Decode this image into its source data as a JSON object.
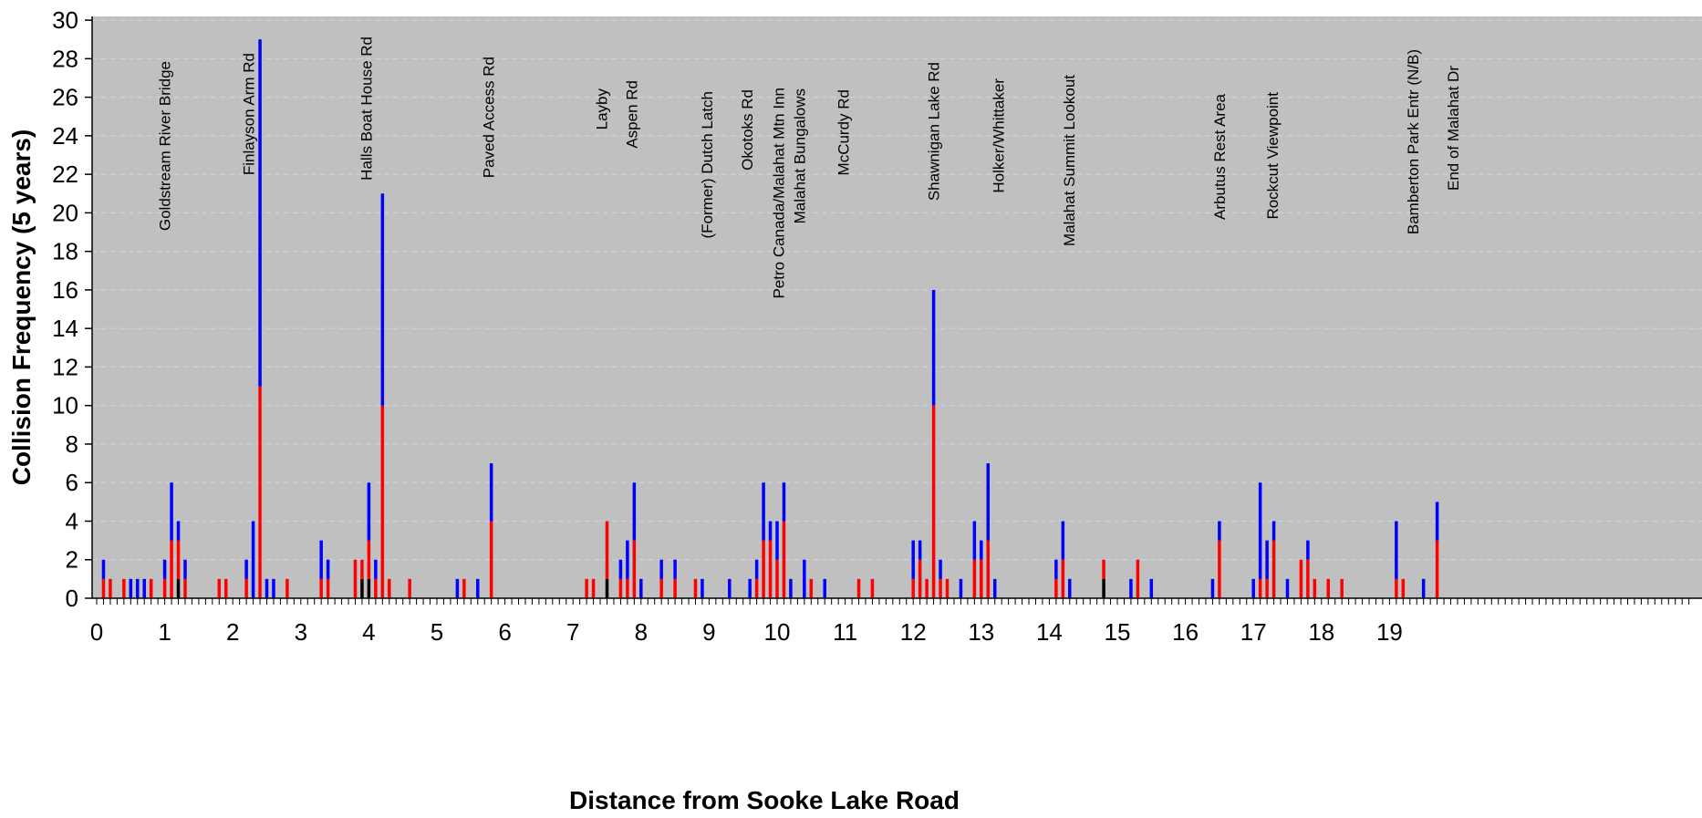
{
  "chart_data": {
    "type": "bar",
    "stacked": true,
    "xlabel": "Distance from Sooke Lake Road",
    "ylabel": "Collision Frequency (5 years)",
    "xlim": [
      0,
      20
    ],
    "ylim": [
      0,
      30
    ],
    "x_ticks": [
      0,
      1,
      2,
      3,
      4,
      5,
      6,
      7,
      8,
      9,
      10,
      11,
      12,
      13,
      14,
      15,
      16,
      17,
      18,
      19
    ],
    "y_ticks": [
      0,
      2,
      4,
      6,
      8,
      10,
      12,
      14,
      16,
      18,
      20,
      22,
      24,
      26,
      28,
      30
    ],
    "grid": "horizontal dashed",
    "colors": {
      "plot_bg": "#c0c0c0",
      "black_series": "#000000",
      "red_series": "#ff0000",
      "blue_series": "#0000ff",
      "grid": "#c5d2ea"
    },
    "landmarks": [
      {
        "km": 1.0,
        "label": "Goldstream River Bridge"
      },
      {
        "km": 2.23,
        "label": "Finlayson Arm Rd"
      },
      {
        "km": 3.96,
        "label": "Halls Boat House Rd"
      },
      {
        "km": 5.76,
        "label": "Paved Access Rd"
      },
      {
        "km": 7.42,
        "label": "Layby"
      },
      {
        "km": 7.86,
        "label": "Aspen Rd"
      },
      {
        "km": 8.97,
        "label": "(Former) Dutch Latch"
      },
      {
        "km": 9.56,
        "label": "Okotoks Rd"
      },
      {
        "km": 10.02,
        "label": "Petro Canada/Malahat Mtn Inn"
      },
      {
        "km": 10.33,
        "label": "Malahat Bungalows"
      },
      {
        "km": 10.97,
        "label": "McCurdy Rd"
      },
      {
        "km": 12.3,
        "label": "Shawnigan Lake Rd"
      },
      {
        "km": 13.25,
        "label": "Holker/Whittaker"
      },
      {
        "km": 14.29,
        "label": "Malahat Summit Lookout"
      },
      {
        "km": 16.5,
        "label": "Arbutus Rest Area"
      },
      {
        "km": 17.28,
        "label": "Rockcut Viewpoint"
      },
      {
        "km": 19.34,
        "label": "Bamberton Park Entr (N/B)"
      },
      {
        "km": 19.93,
        "label": "End of Malahat Dr"
      }
    ],
    "bars": [
      {
        "x": 0.1,
        "black": 0,
        "red": 1,
        "blue": 1
      },
      {
        "x": 0.2,
        "black": 0,
        "red": 1,
        "blue": 0
      },
      {
        "x": 0.4,
        "black": 0,
        "red": 1,
        "blue": 0
      },
      {
        "x": 0.5,
        "black": 0,
        "red": 0,
        "blue": 1
      },
      {
        "x": 0.6,
        "black": 0,
        "red": 0,
        "blue": 1
      },
      {
        "x": 0.7,
        "black": 0,
        "red": 0,
        "blue": 1
      },
      {
        "x": 0.8,
        "black": 0,
        "red": 1,
        "blue": 0
      },
      {
        "x": 1.0,
        "black": 0,
        "red": 1,
        "blue": 1
      },
      {
        "x": 1.1,
        "black": 0,
        "red": 3,
        "blue": 3
      },
      {
        "x": 1.2,
        "black": 1,
        "red": 2,
        "blue": 1
      },
      {
        "x": 1.3,
        "black": 0,
        "red": 1,
        "blue": 1
      },
      {
        "x": 1.8,
        "black": 0,
        "red": 1,
        "blue": 0
      },
      {
        "x": 1.9,
        "black": 0,
        "red": 1,
        "blue": 0
      },
      {
        "x": 2.2,
        "black": 0,
        "red": 1,
        "blue": 1
      },
      {
        "x": 2.3,
        "black": 0,
        "red": 0,
        "blue": 4
      },
      {
        "x": 2.4,
        "black": 0,
        "red": 11,
        "blue": 18
      },
      {
        "x": 2.5,
        "black": 0,
        "red": 0,
        "blue": 1
      },
      {
        "x": 2.6,
        "black": 0,
        "red": 0,
        "blue": 1
      },
      {
        "x": 2.8,
        "black": 0,
        "red": 1,
        "blue": 0
      },
      {
        "x": 3.3,
        "black": 0,
        "red": 1,
        "blue": 2
      },
      {
        "x": 3.4,
        "black": 0,
        "red": 1,
        "blue": 1
      },
      {
        "x": 3.8,
        "black": 0,
        "red": 2,
        "blue": 0
      },
      {
        "x": 3.9,
        "black": 1,
        "red": 1,
        "blue": 0
      },
      {
        "x": 4.0,
        "black": 1,
        "red": 2,
        "blue": 3
      },
      {
        "x": 4.1,
        "black": 0,
        "red": 1,
        "blue": 1
      },
      {
        "x": 4.2,
        "black": 0,
        "red": 10,
        "blue": 11
      },
      {
        "x": 4.3,
        "black": 0,
        "red": 1,
        "blue": 0
      },
      {
        "x": 4.6,
        "black": 0,
        "red": 1,
        "blue": 0
      },
      {
        "x": 5.3,
        "black": 0,
        "red": 0,
        "blue": 1
      },
      {
        "x": 5.4,
        "black": 0,
        "red": 1,
        "blue": 0
      },
      {
        "x": 5.6,
        "black": 0,
        "red": 0,
        "blue": 1
      },
      {
        "x": 5.8,
        "black": 0,
        "red": 4,
        "blue": 3
      },
      {
        "x": 7.2,
        "black": 0,
        "red": 1,
        "blue": 0
      },
      {
        "x": 7.3,
        "black": 0,
        "red": 1,
        "blue": 0
      },
      {
        "x": 7.5,
        "black": 1,
        "red": 3,
        "blue": 0
      },
      {
        "x": 7.7,
        "black": 0,
        "red": 1,
        "blue": 1
      },
      {
        "x": 7.8,
        "black": 0,
        "red": 1,
        "blue": 2
      },
      {
        "x": 7.9,
        "black": 0,
        "red": 3,
        "blue": 3
      },
      {
        "x": 8.0,
        "black": 0,
        "red": 0,
        "blue": 1
      },
      {
        "x": 8.3,
        "black": 0,
        "red": 1,
        "blue": 1
      },
      {
        "x": 8.5,
        "black": 0,
        "red": 1,
        "blue": 1
      },
      {
        "x": 8.8,
        "black": 0,
        "red": 1,
        "blue": 0
      },
      {
        "x": 8.9,
        "black": 0,
        "red": 0,
        "blue": 1
      },
      {
        "x": 9.3,
        "black": 0,
        "red": 0,
        "blue": 1
      },
      {
        "x": 9.6,
        "black": 0,
        "red": 0,
        "blue": 1
      },
      {
        "x": 9.7,
        "black": 0,
        "red": 1,
        "blue": 1
      },
      {
        "x": 9.8,
        "black": 0,
        "red": 3,
        "blue": 3
      },
      {
        "x": 9.9,
        "black": 0,
        "red": 3,
        "blue": 1
      },
      {
        "x": 10.0,
        "black": 0,
        "red": 2,
        "blue": 2
      },
      {
        "x": 10.1,
        "black": 0,
        "red": 4,
        "blue": 2
      },
      {
        "x": 10.2,
        "black": 0,
        "red": 0,
        "blue": 1
      },
      {
        "x": 10.4,
        "black": 0,
        "red": 0,
        "blue": 2
      },
      {
        "x": 10.5,
        "black": 0,
        "red": 1,
        "blue": 0
      },
      {
        "x": 10.7,
        "black": 0,
        "red": 0,
        "blue": 1
      },
      {
        "x": 11.2,
        "black": 0,
        "red": 1,
        "blue": 0
      },
      {
        "x": 11.4,
        "black": 0,
        "red": 1,
        "blue": 0
      },
      {
        "x": 12.0,
        "black": 0,
        "red": 1,
        "blue": 2
      },
      {
        "x": 12.1,
        "black": 0,
        "red": 2,
        "blue": 1
      },
      {
        "x": 12.2,
        "black": 0,
        "red": 1,
        "blue": 0
      },
      {
        "x": 12.3,
        "black": 0,
        "red": 10,
        "blue": 6
      },
      {
        "x": 12.4,
        "black": 0,
        "red": 1,
        "blue": 1
      },
      {
        "x": 12.5,
        "black": 0,
        "red": 1,
        "blue": 0
      },
      {
        "x": 12.7,
        "black": 0,
        "red": 0,
        "blue": 1
      },
      {
        "x": 12.9,
        "black": 0,
        "red": 2,
        "blue": 2
      },
      {
        "x": 13.0,
        "black": 0,
        "red": 2,
        "blue": 1
      },
      {
        "x": 13.1,
        "black": 0,
        "red": 3,
        "blue": 4
      },
      {
        "x": 13.2,
        "black": 0,
        "red": 0,
        "blue": 1
      },
      {
        "x": 14.1,
        "black": 0,
        "red": 1,
        "blue": 1
      },
      {
        "x": 14.2,
        "black": 0,
        "red": 2,
        "blue": 2
      },
      {
        "x": 14.3,
        "black": 0,
        "red": 0,
        "blue": 1
      },
      {
        "x": 14.8,
        "black": 1,
        "red": 1,
        "blue": 0
      },
      {
        "x": 15.2,
        "black": 0,
        "red": 0,
        "blue": 1
      },
      {
        "x": 15.3,
        "black": 0,
        "red": 2,
        "blue": 0
      },
      {
        "x": 15.5,
        "black": 0,
        "red": 0,
        "blue": 1
      },
      {
        "x": 16.4,
        "black": 0,
        "red": 0,
        "blue": 1
      },
      {
        "x": 16.5,
        "black": 0,
        "red": 3,
        "blue": 1
      },
      {
        "x": 17.0,
        "black": 0,
        "red": 0,
        "blue": 1
      },
      {
        "x": 17.1,
        "black": 0,
        "red": 1,
        "blue": 5
      },
      {
        "x": 17.2,
        "black": 0,
        "red": 1,
        "blue": 2
      },
      {
        "x": 17.3,
        "black": 0,
        "red": 3,
        "blue": 1
      },
      {
        "x": 17.5,
        "black": 0,
        "red": 0,
        "blue": 1
      },
      {
        "x": 17.7,
        "black": 0,
        "red": 2,
        "blue": 0
      },
      {
        "x": 17.8,
        "black": 0,
        "red": 2,
        "blue": 1
      },
      {
        "x": 17.9,
        "black": 0,
        "red": 1,
        "blue": 0
      },
      {
        "x": 18.1,
        "black": 0,
        "red": 1,
        "blue": 0
      },
      {
        "x": 18.3,
        "black": 0,
        "red": 1,
        "blue": 0
      },
      {
        "x": 19.1,
        "black": 0,
        "red": 1,
        "blue": 3
      },
      {
        "x": 19.2,
        "black": 0,
        "red": 1,
        "blue": 0
      },
      {
        "x": 19.5,
        "black": 0,
        "red": 0,
        "blue": 1
      },
      {
        "x": 19.7,
        "black": 0,
        "red": 3,
        "blue": 2
      }
    ]
  }
}
